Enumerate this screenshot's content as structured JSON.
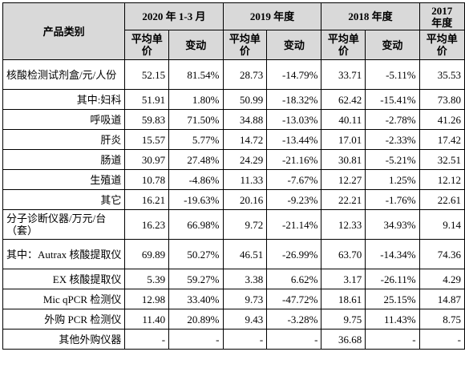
{
  "header": {
    "category": "产品类别",
    "periods": [
      "2020 年 1-3 月",
      "2019 年度",
      "2018 年度"
    ],
    "year_2017_line1": "2017",
    "year_2017_line2": "年度",
    "avg_price": "平均单价",
    "change": "变动"
  },
  "rows": [
    {
      "name": "核酸检测试剂盒/元/人份",
      "align": "left",
      "v2020": "52.15",
      "c2020": "81.54%",
      "v2019": "28.73",
      "c2019": "-14.79%",
      "v2018": "33.71",
      "c2018": "-5.11%",
      "v2017": "35.53"
    },
    {
      "name": "其中:妇科",
      "align": "right",
      "v2020": "51.91",
      "c2020": "1.80%",
      "v2019": "50.99",
      "c2019": "-18.32%",
      "v2018": "62.42",
      "c2018": "-15.41%",
      "v2017": "73.80"
    },
    {
      "name": "呼吸道",
      "align": "right",
      "v2020": "59.83",
      "c2020": "71.50%",
      "v2019": "34.88",
      "c2019": "-13.03%",
      "v2018": "40.11",
      "c2018": "-2.78%",
      "v2017": "41.26"
    },
    {
      "name": "肝炎",
      "align": "right",
      "v2020": "15.57",
      "c2020": "5.77%",
      "v2019": "14.72",
      "c2019": "-13.44%",
      "v2018": "17.01",
      "c2018": "-2.33%",
      "v2017": "17.42"
    },
    {
      "name": "肠道",
      "align": "right",
      "v2020": "30.97",
      "c2020": "27.48%",
      "v2019": "24.29",
      "c2019": "-21.16%",
      "v2018": "30.81",
      "c2018": "-5.21%",
      "v2017": "32.51"
    },
    {
      "name": "生殖道",
      "align": "right",
      "v2020": "10.78",
      "c2020": "-4.86%",
      "v2019": "11.33",
      "c2019": "-7.67%",
      "v2018": "12.27",
      "c2018": "1.25%",
      "v2017": "12.12"
    },
    {
      "name": "其它",
      "align": "right",
      "v2020": "16.21",
      "c2020": "-19.63%",
      "v2019": "20.16",
      "c2019": "-9.23%",
      "v2018": "22.21",
      "c2018": "-1.76%",
      "v2017": "22.61"
    },
    {
      "name": "分子诊断仪器/万元/台（套）",
      "align": "left",
      "v2020": "16.23",
      "c2020": "66.98%",
      "v2019": "9.72",
      "c2019": "-21.14%",
      "v2018": "12.33",
      "c2018": "34.93%",
      "v2017": "9.14"
    },
    {
      "name": "其中：Autrax 核酸提取仪",
      "align": "right",
      "v2020": "69.89",
      "c2020": "50.27%",
      "v2019": "46.51",
      "c2019": "-26.99%",
      "v2018": "63.70",
      "c2018": "-14.34%",
      "v2017": "74.36"
    },
    {
      "name": "EX 核酸提取仪",
      "align": "right",
      "v2020": "5.39",
      "c2020": "59.27%",
      "v2019": "3.38",
      "c2019": "6.62%",
      "v2018": "3.17",
      "c2018": "-26.11%",
      "v2017": "4.29"
    },
    {
      "name": "Mic qPCR 检测仪",
      "align": "right",
      "v2020": "12.98",
      "c2020": "33.40%",
      "v2019": "9.73",
      "c2019": "-47.72%",
      "v2018": "18.61",
      "c2018": "25.15%",
      "v2017": "14.87"
    },
    {
      "name": "外购 PCR 检测仪",
      "align": "right",
      "v2020": "11.40",
      "c2020": "20.89%",
      "v2019": "9.43",
      "c2019": "-3.28%",
      "v2018": "9.75",
      "c2018": "11.43%",
      "v2017": "8.75"
    },
    {
      "name": "其他外购仪器",
      "align": "right",
      "v2020": "-",
      "c2020": "-",
      "v2019": "-",
      "c2019": "-",
      "v2018": "36.68",
      "c2018": "-",
      "v2017": "-"
    }
  ]
}
